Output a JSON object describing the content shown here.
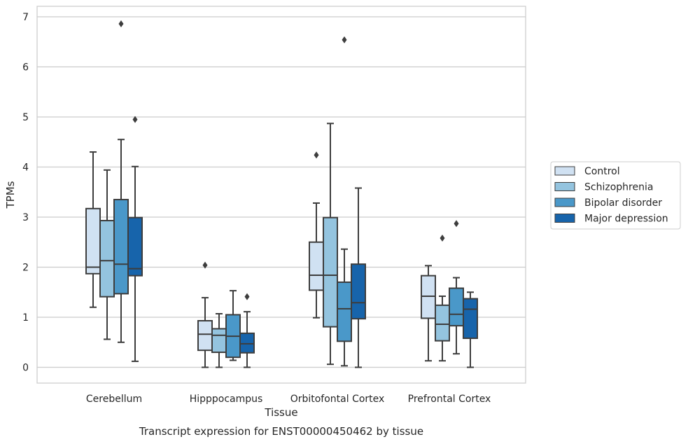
{
  "chart_data": {
    "type": "boxplot",
    "title": "Transcript expression for ENST00000450462 by tissue",
    "xlabel": "Tissue",
    "ylabel": "TPMs",
    "ylim": [
      -0.32,
      7.2
    ],
    "yticks": [
      0,
      1,
      2,
      3,
      4,
      5,
      6,
      7
    ],
    "grid": true,
    "legend_position": "right",
    "categories": [
      "Cerebellum",
      "Hipppocampus",
      "Orbitofontal Cortex",
      "Prefrontal Cortex"
    ],
    "series": [
      {
        "name": "Control",
        "color": "#d0e1f2",
        "boxes": [
          {
            "whislo": 1.2,
            "q1": 1.87,
            "med": 2.0,
            "q3": 3.17,
            "whishi": 4.3,
            "fliers": []
          },
          {
            "whislo": 0.0,
            "q1": 0.34,
            "med": 0.66,
            "q3": 0.93,
            "whishi": 1.39,
            "fliers": [
              2.04
            ]
          },
          {
            "whislo": 0.99,
            "q1": 1.54,
            "med": 1.84,
            "q3": 2.5,
            "whishi": 3.28,
            "fliers": [
              4.24
            ]
          },
          {
            "whislo": 0.13,
            "q1": 0.98,
            "med": 1.42,
            "q3": 1.83,
            "whishi": 2.03,
            "fliers": []
          }
        ]
      },
      {
        "name": "Schizophrenia",
        "color": "#94c4df",
        "boxes": [
          {
            "whislo": 0.56,
            "q1": 1.41,
            "med": 2.13,
            "q3": 2.93,
            "whishi": 3.94,
            "fliers": []
          },
          {
            "whislo": 0.0,
            "q1": 0.3,
            "med": 0.64,
            "q3": 0.77,
            "whishi": 1.07,
            "fliers": []
          },
          {
            "whislo": 0.06,
            "q1": 0.81,
            "med": 1.84,
            "q3": 2.99,
            "whishi": 4.87,
            "fliers": []
          },
          {
            "whislo": 0.13,
            "q1": 0.53,
            "med": 0.86,
            "q3": 1.24,
            "whishi": 1.42,
            "fliers": [
              2.58
            ]
          }
        ]
      },
      {
        "name": "Bipolar disorder",
        "color": "#4a98c9",
        "boxes": [
          {
            "whislo": 0.5,
            "q1": 1.47,
            "med": 2.06,
            "q3": 3.35,
            "whishi": 4.55,
            "fliers": [
              6.86
            ]
          },
          {
            "whislo": 0.14,
            "q1": 0.2,
            "med": 0.62,
            "q3": 1.05,
            "whishi": 1.53,
            "fliers": []
          },
          {
            "whislo": 0.03,
            "q1": 0.52,
            "med": 1.17,
            "q3": 1.7,
            "whishi": 2.36,
            "fliers": [
              6.54
            ]
          },
          {
            "whislo": 0.27,
            "q1": 0.83,
            "med": 1.06,
            "q3": 1.58,
            "whishi": 1.79,
            "fliers": [
              2.87
            ]
          }
        ]
      },
      {
        "name": "Major depression",
        "color": "#1764ab",
        "boxes": [
          {
            "whislo": 0.12,
            "q1": 1.83,
            "med": 1.97,
            "q3": 2.99,
            "whishi": 4.01,
            "fliers": [
              4.95
            ]
          },
          {
            "whislo": 0.0,
            "q1": 0.29,
            "med": 0.47,
            "q3": 0.68,
            "whishi": 1.11,
            "fliers": [
              1.41
            ]
          },
          {
            "whislo": 0.0,
            "q1": 0.97,
            "med": 1.29,
            "q3": 2.06,
            "whishi": 3.58,
            "fliers": []
          },
          {
            "whislo": 0.0,
            "q1": 0.58,
            "med": 1.16,
            "q3": 1.37,
            "whishi": 1.5,
            "fliers": []
          }
        ]
      }
    ]
  }
}
